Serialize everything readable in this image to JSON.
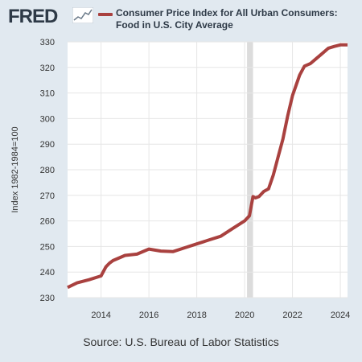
{
  "header": {
    "logo_text": "FRED",
    "logo_icon": "trend-line-icon",
    "legend_line1": "Consumer Price Index for All Urban Consumers:",
    "legend_line2": "Food in U.S. City Average"
  },
  "colors": {
    "background": "#e1e9f0",
    "plot_background": "#ffffff",
    "series": "#a9413f",
    "recession": "#dcdcdc",
    "grid": "#e6e6e6"
  },
  "footer": {
    "source": "Source: U.S. Bureau of Labor Statistics"
  },
  "chart_data": {
    "type": "line",
    "title": "Consumer Price Index for All Urban Consumers: Food in U.S. City Average",
    "xlabel": "",
    "ylabel": "Index 1982-1984=100",
    "xlim": [
      2012.6,
      2024.3
    ],
    "ylim": [
      230,
      330
    ],
    "yticks": [
      230,
      240,
      250,
      260,
      270,
      280,
      290,
      300,
      310,
      320,
      330
    ],
    "xticks": [
      2014,
      2016,
      2018,
      2020,
      2022,
      2024
    ],
    "grid": true,
    "legend": "top",
    "recession_shading": [
      [
        2020.1,
        2020.35
      ]
    ],
    "series": [
      {
        "name": "Consumer Price Index for All Urban Consumers: Food in U.S. City Average",
        "x": [
          2012.6,
          2013.0,
          2013.5,
          2014.0,
          2014.2,
          2014.35,
          2014.5,
          2015.0,
          2015.5,
          2016.0,
          2016.5,
          2017.0,
          2017.5,
          2018.0,
          2018.5,
          2019.0,
          2019.5,
          2020.0,
          2020.2,
          2020.3,
          2020.35,
          2020.45,
          2020.6,
          2020.8,
          2021.0,
          2021.2,
          2021.4,
          2021.6,
          2021.8,
          2022.0,
          2022.3,
          2022.5,
          2022.75,
          2023.0,
          2023.25,
          2023.5,
          2023.75,
          2024.0,
          2024.3
        ],
        "values": [
          234.0,
          235.8,
          237.0,
          238.5,
          242.0,
          243.5,
          244.5,
          246.5,
          247.0,
          249.0,
          248.2,
          248.0,
          249.5,
          251.0,
          252.5,
          254.0,
          257.0,
          260.0,
          262.0,
          267.0,
          269.5,
          269.0,
          269.5,
          271.5,
          272.5,
          278.0,
          285.0,
          292.0,
          301.0,
          309.0,
          317.0,
          320.5,
          321.5,
          323.5,
          325.5,
          327.5,
          328.2,
          328.8,
          328.8
        ]
      }
    ]
  }
}
